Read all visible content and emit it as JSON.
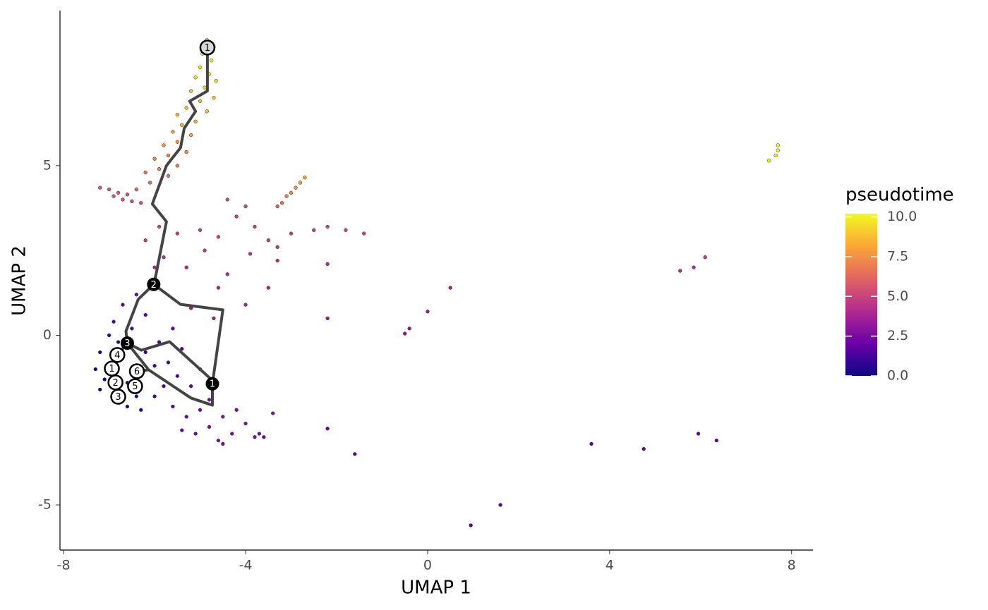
{
  "chart_data": {
    "type": "scatter",
    "xlabel": "UMAP 1",
    "ylabel": "UMAP 2",
    "colorbar_title": "pseudotime",
    "xlim": [
      -8.08,
      8.47
    ],
    "ylim": [
      -6.33,
      9.57
    ],
    "xticks": [
      -8,
      -4,
      0,
      4,
      8
    ],
    "yticks": [
      -5,
      0,
      5
    ],
    "colorlim": [
      0,
      10.2
    ],
    "colorticks": [
      {
        "value": 0,
        "label": "0.0"
      },
      {
        "value": 2.5,
        "label": "2.5"
      },
      {
        "value": 5,
        "label": "5.0"
      },
      {
        "value": 7.5,
        "label": "7.5"
      },
      {
        "value": 10,
        "label": "10.0"
      }
    ],
    "colorscale": [
      "#0d0887",
      "#6a00a8",
      "#b12a90",
      "#e16462",
      "#fca636",
      "#f0f921"
    ],
    "x": [
      -4.85,
      -4.7,
      -4.95,
      -4.75,
      -5.0,
      -4.8,
      -5.1,
      -4.65,
      -4.9,
      -5.2,
      -4.7,
      -5.0,
      -5.3,
      -4.85,
      -5.5,
      -5.1,
      -5.4,
      -5.6,
      -5.2,
      -5.5,
      -5.8,
      -5.3,
      -5.7,
      -6.0,
      -5.5,
      -5.9,
      -6.2,
      -5.7,
      -6.1,
      -6.4,
      -7.2,
      -7.0,
      -6.8,
      -6.9,
      -6.6,
      -6.5,
      -6.7,
      -6.3,
      -2.7,
      -2.8,
      -2.9,
      -3.0,
      -3.1,
      -3.2,
      -3.3,
      -5.9,
      -5.5,
      -5.0,
      -4.6,
      -4.2,
      -3.8,
      -3.5,
      -3.3,
      -3.0,
      -2.5,
      -2.2,
      -1.8,
      -1.4,
      -4.4,
      -4.0,
      -6.2,
      -5.8,
      -5.3,
      -4.9,
      -4.4,
      -3.9,
      -3.3,
      -2.2,
      -6.0,
      -4.6,
      -3.5,
      -4.0,
      -4.7,
      -5.2,
      -6.1,
      -6.4,
      -6.7,
      -6.2,
      -6.9,
      -6.5,
      -7.0,
      -6.8,
      -7.2,
      -6.9,
      -7.3,
      -7.1,
      -7.2,
      -6.9,
      -6.6,
      -6.3,
      -6.4,
      -6.6,
      -6.3,
      -6.0,
      -6.2,
      -5.9,
      -5.6,
      -5.4,
      -5.7,
      -5.5,
      -5.8,
      -6.0,
      -5.2,
      -5.0,
      -5.6,
      -5.3,
      -5.0,
      -4.8,
      -4.5,
      -4.3,
      -4.6,
      -5.1,
      -4.2,
      -4.0,
      -4.8,
      -5.4,
      -4.5,
      -3.7,
      -3.4,
      -3.8,
      7.7,
      7.65,
      7.5,
      7.7,
      5.55,
      5.85,
      6.1,
      0.5,
      0.0,
      -0.4,
      -0.5,
      -2.2,
      -2.2,
      -1.6,
      1.6,
      0.95,
      3.6,
      4.75,
      5.95,
      6.35,
      -3.6
    ],
    "y": [
      8.7,
      8.5,
      8.3,
      8.1,
      7.9,
      7.7,
      7.6,
      7.5,
      7.3,
      7.2,
      7.0,
      6.9,
      6.7,
      6.6,
      6.5,
      6.3,
      6.2,
      6.0,
      5.9,
      5.7,
      5.6,
      5.4,
      5.3,
      5.2,
      5.0,
      4.9,
      4.8,
      4.7,
      4.5,
      4.3,
      4.35,
      4.3,
      4.2,
      4.1,
      4.15,
      3.95,
      4.0,
      3.9,
      4.65,
      4.5,
      4.35,
      4.2,
      4.1,
      3.9,
      3.8,
      3.2,
      3.0,
      3.1,
      2.9,
      3.5,
      3.2,
      2.8,
      2.6,
      3.0,
      3.1,
      3.2,
      3.1,
      3.0,
      4.0,
      3.8,
      2.8,
      2.3,
      2.0,
      2.5,
      1.8,
      2.4,
      2.2,
      2.1,
      2.0,
      1.4,
      1.4,
      0.9,
      0.5,
      0.8,
      1.5,
      1.2,
      0.9,
      0.6,
      0.4,
      0.2,
      0.0,
      -0.2,
      -0.5,
      -0.8,
      -1.0,
      -1.3,
      -1.6,
      -1.9,
      -2.1,
      -2.2,
      -1.8,
      -1.4,
      -1.2,
      -0.9,
      -0.5,
      -0.2,
      0.2,
      -0.4,
      -0.8,
      -1.2,
      -1.5,
      -1.8,
      -1.5,
      -1.0,
      -2.1,
      -2.4,
      -2.2,
      -2.7,
      -2.4,
      -2.9,
      -3.1,
      -2.9,
      -2.2,
      -2.6,
      -1.9,
      -2.8,
      -3.2,
      -2.9,
      -2.3,
      -3.0,
      5.6,
      5.3,
      5.15,
      5.45,
      1.9,
      2.0,
      2.3,
      1.4,
      0.7,
      0.2,
      0.05,
      0.5,
      -2.75,
      -3.5,
      -5.0,
      -5.6,
      -3.2,
      -3.35,
      -2.9,
      -3.1,
      -3.0
    ],
    "values": [
      10.2,
      10.1,
      10,
      9.9,
      9.8,
      9.7,
      9.6,
      9.5,
      9.3,
      9.1,
      9.0,
      8.9,
      8.7,
      8.6,
      8.5,
      8.3,
      8.2,
      8.0,
      7.9,
      7.7,
      7.6,
      7.4,
      7.3,
      7.1,
      7.0,
      6.9,
      6.8,
      6.7,
      6.5,
      6.2,
      5.8,
      5.8,
      5.7,
      5.7,
      5.6,
      5.5,
      5.6,
      5.4,
      8.0,
      7.8,
      7.5,
      7.3,
      7.0,
      6.5,
      6.0,
      5.0,
      4.8,
      4.9,
      4.8,
      5.0,
      4.9,
      4.7,
      4.6,
      4.8,
      4.9,
      5.0,
      5.0,
      5.0,
      5.3,
      5.2,
      4.8,
      4.5,
      4.3,
      4.6,
      4.2,
      4.5,
      4.3,
      4.2,
      4.2,
      3.8,
      3.9,
      3.8,
      3.5,
      3.4,
      2.6,
      2.3,
      2.0,
      2.0,
      1.5,
      1.6,
      1.0,
      0.8,
      0.4,
      0.3,
      0.1,
      0.2,
      0.1,
      0.3,
      0.6,
      0.9,
      0.8,
      0.6,
      0.9,
      1.2,
      1.3,
      1.5,
      1.8,
      1.9,
      1.6,
      1.8,
      1.5,
      1.3,
      2.0,
      2.1,
      2.0,
      2.3,
      2.5,
      2.6,
      2.8,
      2.7,
      2.6,
      2.4,
      2.9,
      2.8,
      2.7,
      2.2,
      2.5,
      2.6,
      2.8,
      2.5,
      10.2,
      10,
      10.1,
      10.2,
      4.2,
      4.3,
      4.4,
      3.6,
      3.4,
      3.3,
      3.2,
      3.4,
      2.0,
      1.9,
      1.8,
      1.8,
      1.9,
      1.9,
      2.0,
      2.0,
      2.3
    ],
    "trajectory": {
      "color": "#444444",
      "x": [
        -4.84,
        -4.84,
        -5.23,
        -5.1,
        -5.35,
        -5.43,
        -5.74,
        -6.05,
        -5.74,
        -5.97,
        -6.02,
        -5.43,
        -4.5,
        -4.73,
        null,
        -6.02,
        -6.36,
        -6.63,
        -6.6,
        -6.29,
        -5.67,
        -4.73,
        null,
        -6.6,
        -6.13,
        -5.2,
        -4.73,
        -4.73,
        null,
        -6.82,
        -6.6,
        null,
        -6.39,
        -6.13
      ],
      "y": [
        8.48,
        7.2,
        6.9,
        6.6,
        6.1,
        5.53,
        5.0,
        3.87,
        3.35,
        1.79,
        1.5,
        0.91,
        0.75,
        -1.43,
        null,
        1.5,
        1.06,
        0.12,
        -0.23,
        -0.44,
        -0.19,
        -1.33,
        null,
        -0.23,
        -1.02,
        -1.85,
        -2.06,
        -1.43,
        null,
        -0.58,
        -0.23,
        null,
        -1.06,
        -1.02
      ]
    },
    "branch_points": {
      "color": "#000000",
      "x": [
        -4.73,
        -6.02,
        -6.6
      ],
      "y": [
        -1.43,
        1.5,
        -0.23
      ],
      "labels": [
        "1",
        "2",
        "3"
      ]
    },
    "roots": {
      "color": "#d9d9d9",
      "x": [
        -4.84
      ],
      "y": [
        8.48
      ],
      "labels": [
        "1"
      ]
    },
    "leaves": {
      "color": "#ffffff",
      "x": [
        -6.94,
        -6.86,
        -6.8,
        -6.82,
        -6.43,
        -6.39
      ],
      "y": [
        -0.98,
        -1.39,
        -1.81,
        -0.58,
        -1.5,
        -1.06
      ],
      "labels": [
        "1",
        "2",
        "3",
        "4",
        "5",
        "6"
      ]
    }
  }
}
